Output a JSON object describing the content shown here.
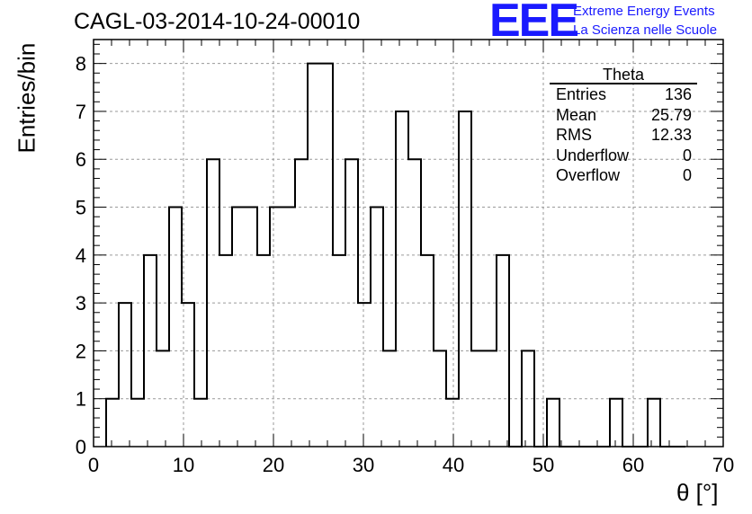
{
  "header": {
    "run_title": "CAGL-03-2014-10-24-00010",
    "logo_mark": "EEE",
    "logo_line1": "Extreme Energy Events",
    "logo_line2": "La Scienza nelle Scuole"
  },
  "stats_box": {
    "title": "Theta",
    "rows": [
      {
        "label": "Entries",
        "value": "136"
      },
      {
        "label": "Mean",
        "value": "25.79"
      },
      {
        "label": "RMS",
        "value": "12.33"
      },
      {
        "label": "Underflow",
        "value": "0"
      },
      {
        "label": "Overflow",
        "value": "0"
      }
    ]
  },
  "chart_data": {
    "type": "bar",
    "style": "step-histogram",
    "xlabel": "θ [°]",
    "ylabel": "Entries/bin",
    "xlim": [
      0,
      70
    ],
    "ylim": [
      0,
      8.5
    ],
    "xticks": [
      0,
      10,
      20,
      30,
      40,
      50,
      60,
      70
    ],
    "yticks": [
      0,
      1,
      2,
      3,
      4,
      5,
      6,
      7,
      8
    ],
    "grid": true,
    "bin_width": 1.4,
    "bin_edges_start": 1.4,
    "values": [
      1,
      3,
      1,
      4,
      2,
      5,
      3,
      1,
      6,
      4,
      5,
      5,
      4,
      5,
      5,
      6,
      8,
      8,
      4,
      6,
      3,
      5,
      2,
      7,
      6,
      4,
      2,
      1,
      7,
      2,
      2,
      4,
      0,
      2,
      0,
      1,
      0,
      0,
      0,
      0,
      1,
      0,
      0,
      1,
      0,
      0
    ]
  },
  "colors": {
    "line": "#000000",
    "grid": "#9a9a9a",
    "logo": "#1a1aff"
  }
}
